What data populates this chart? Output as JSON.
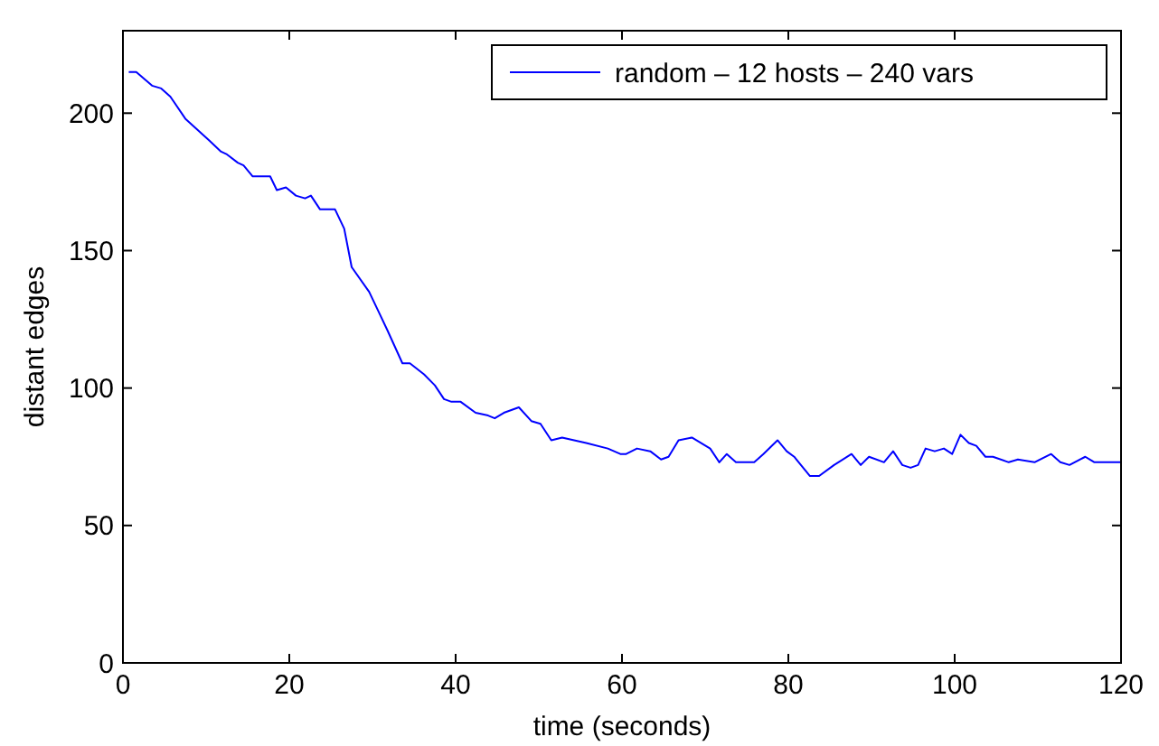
{
  "chart_data": {
    "type": "line",
    "xlabel": "time (seconds)",
    "ylabel": "distant edges",
    "xlim": [
      0,
      120
    ],
    "xticks": [
      0,
      20,
      40,
      60,
      80,
      100,
      120
    ],
    "ylim": [
      0,
      230
    ],
    "yticks": [
      0,
      50,
      100,
      150,
      200
    ],
    "grid": false,
    "legend": "top right",
    "marker": "none",
    "line_style": "solid",
    "series": [
      {
        "name": "random – 12 hosts – 240 vars",
        "color": "#0000ff",
        "x": [
          0.7,
          1.6,
          3.5,
          4.6,
          5.7,
          7.5,
          10.4,
          11.8,
          12.5,
          13.8,
          14.5,
          15.6,
          17.7,
          18.5,
          19.6,
          20.8,
          21.9,
          22.6,
          23.7,
          25.5,
          26.6,
          27.5,
          29.6,
          30.7,
          31.8,
          33.6,
          34.5,
          36.2,
          37.5,
          38.6,
          39.5,
          40.6,
          42.4,
          43.9,
          44.7,
          45.8,
          47.6,
          49.1,
          50.2,
          51.5,
          52.8,
          55.7,
          58.3,
          59.8,
          60.5,
          61.8,
          63.4,
          64.7,
          65.6,
          66.8,
          68.4,
          70.6,
          71.7,
          72.6,
          73.7,
          75.9,
          77,
          78.7,
          79.8,
          80.7,
          82.6,
          83.7,
          85.5,
          87.6,
          88.7,
          89.7,
          91.5,
          92.6,
          93.7,
          94.7,
          95.6,
          96.5,
          97.6,
          98.7,
          99.7,
          100.7,
          101.7,
          102.6,
          103.7,
          104.6,
          106.5,
          107.6,
          109.6,
          111.6,
          112.7,
          113.8,
          115.7,
          116.8,
          120
        ],
        "values": [
          215,
          215,
          210,
          209,
          206,
          198,
          190,
          186,
          185,
          182,
          181,
          177,
          177,
          172,
          173,
          170,
          169,
          170,
          165,
          165,
          158,
          144,
          135,
          128,
          121,
          109,
          109,
          105,
          101,
          96,
          95,
          95,
          91,
          90,
          89,
          91,
          93,
          88,
          87,
          81,
          82,
          80,
          78,
          76,
          76,
          78,
          77,
          74,
          75,
          81,
          82,
          78,
          73,
          76,
          73,
          73,
          76,
          81,
          77,
          75,
          68,
          68,
          72,
          76,
          72,
          75,
          73,
          77,
          72,
          71,
          72,
          78,
          77,
          78,
          76,
          83,
          80,
          79,
          75,
          75,
          73,
          74,
          73,
          76,
          73,
          72,
          75,
          73,
          73
        ]
      }
    ]
  }
}
